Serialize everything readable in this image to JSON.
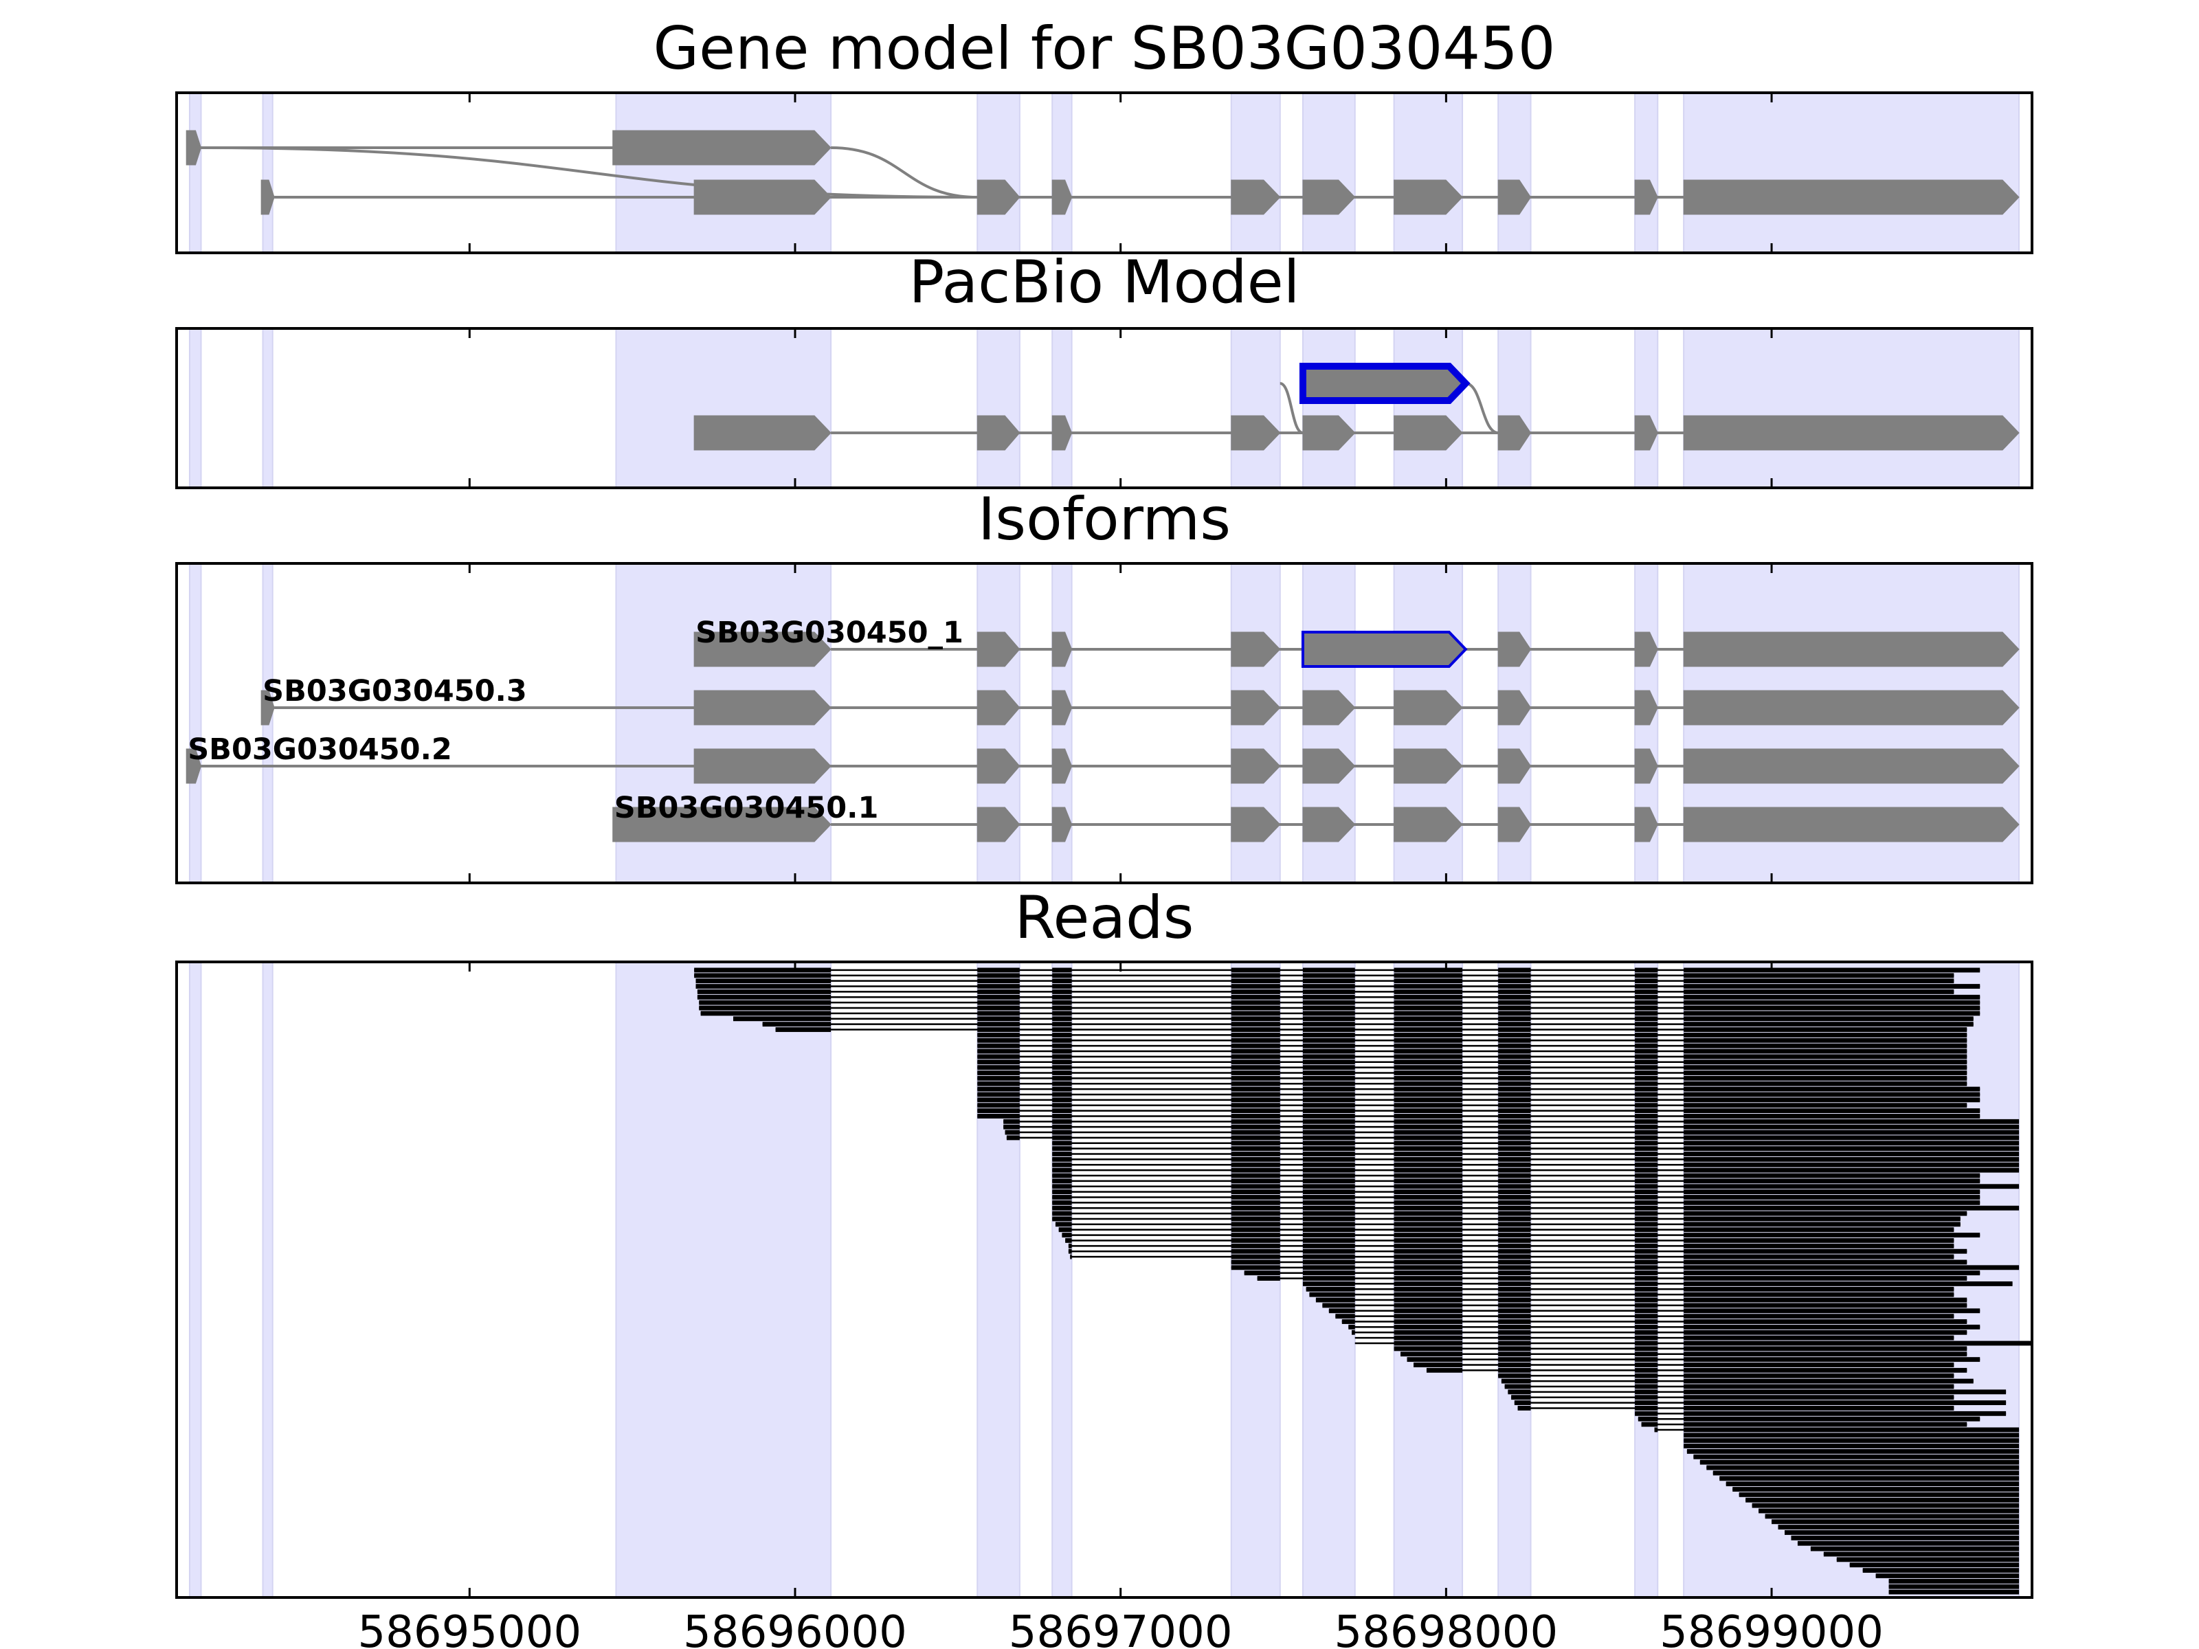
{
  "chart_data": {
    "type": "gene-structure",
    "x_range": [
      58694100,
      58699800
    ],
    "x_ticks": [
      58695000,
      58696000,
      58697000,
      58698000,
      58699000
    ],
    "highlight_color": "#e3e3fc",
    "feature_color": "#808080",
    "novel_color": "#0000dd",
    "exon_regions": [
      [
        58694140,
        58694175
      ],
      [
        58694365,
        58694395
      ],
      [
        58695450,
        58696110
      ],
      [
        58696560,
        58696690
      ],
      [
        58696790,
        58696850
      ],
      [
        58697340,
        58697490
      ],
      [
        58697560,
        58697720
      ],
      [
        58697840,
        58698050
      ],
      [
        58698160,
        58698260
      ],
      [
        58698580,
        58698650
      ],
      [
        58698730,
        58699760
      ]
    ],
    "panels": [
      {
        "title": "Gene model for SB03G030450",
        "kind": "splice-graph",
        "tracks": [
          {
            "exons": [
              [
                58694130,
                58694175
              ],
              [
                58695440,
                58696110
              ]
            ]
          },
          {
            "exons": [
              [
                58694360,
                58694400
              ],
              [
                58695690,
                58696110
              ],
              [
                58696560,
                58696690
              ],
              [
                58696790,
                58696850
              ],
              [
                58697340,
                58697490
              ],
              [
                58697560,
                58697720
              ],
              [
                58697840,
                58698050
              ],
              [
                58698160,
                58698260
              ],
              [
                58698580,
                58698650
              ],
              [
                58698730,
                58699760
              ]
            ]
          }
        ],
        "links": [
          [
            58694175,
            58696560
          ],
          [
            58696110,
            58696560
          ]
        ]
      },
      {
        "title": "PacBio Model",
        "kind": "splice-graph",
        "tracks": [
          {
            "novel": true,
            "exons": [
              [
                58697560,
                58698060
              ]
            ]
          },
          {
            "exons": [
              [
                58695690,
                58696110
              ],
              [
                58696560,
                58696690
              ],
              [
                58696790,
                58696850
              ],
              [
                58697340,
                58697490
              ],
              [
                58697560,
                58697720
              ],
              [
                58697840,
                58698050
              ],
              [
                58698160,
                58698260
              ],
              [
                58698580,
                58698650
              ],
              [
                58698730,
                58699760
              ]
            ]
          }
        ],
        "links": [
          [
            58697490,
            58697560
          ],
          [
            58698060,
            58698160
          ]
        ]
      },
      {
        "title": "Isoforms",
        "kind": "isoforms",
        "isoforms": [
          {
            "name": "SB03G030450_1",
            "novel_exon": 4,
            "exons": [
              [
                58695690,
                58696110
              ],
              [
                58696560,
                58696690
              ],
              [
                58696790,
                58696850
              ],
              [
                58697340,
                58697490
              ],
              [
                58697560,
                58698060
              ],
              [
                58698160,
                58698260
              ],
              [
                58698580,
                58698650
              ],
              [
                58698730,
                58699760
              ]
            ]
          },
          {
            "name": "SB03G030450.3",
            "exons": [
              [
                58694360,
                58694400
              ],
              [
                58695690,
                58696110
              ],
              [
                58696560,
                58696690
              ],
              [
                58696790,
                58696850
              ],
              [
                58697340,
                58697490
              ],
              [
                58697560,
                58697720
              ],
              [
                58697840,
                58698050
              ],
              [
                58698160,
                58698260
              ],
              [
                58698580,
                58698650
              ],
              [
                58698730,
                58699760
              ]
            ]
          },
          {
            "name": "SB03G030450.2",
            "exons": [
              [
                58694130,
                58694175
              ],
              [
                58695690,
                58696110
              ],
              [
                58696560,
                58696690
              ],
              [
                58696790,
                58696850
              ],
              [
                58697340,
                58697490
              ],
              [
                58697560,
                58697720
              ],
              [
                58697840,
                58698050
              ],
              [
                58698160,
                58698260
              ],
              [
                58698580,
                58698650
              ],
              [
                58698730,
                58699760
              ]
            ]
          },
          {
            "name": "SB03G030450.1",
            "exons": [
              [
                58695440,
                58696110
              ],
              [
                58696560,
                58696690
              ],
              [
                58696790,
                58696850
              ],
              [
                58697340,
                58697490
              ],
              [
                58697560,
                58697720
              ],
              [
                58697840,
                58698050
              ],
              [
                58698160,
                58698260
              ],
              [
                58698580,
                58698650
              ],
              [
                58698730,
                58699760
              ]
            ]
          }
        ]
      },
      {
        "title": "Reads",
        "kind": "reads",
        "read_groups": [
          {
            "count": 9,
            "starts": [
              58695690,
              58695690,
              58695695,
              58695695,
              58695700,
              58695700,
              58695705,
              58695705,
              58695710
            ],
            "first_exon": 0
          },
          {
            "count": 3,
            "starts": [
              58695810,
              58695900,
              58695940
            ],
            "first_exon": 0
          },
          {
            "count": 16,
            "starts": [
              58696560,
              58696560,
              58696560,
              58696560,
              58696560,
              58696560,
              58696560,
              58696560,
              58696560,
              58696560,
              58696560,
              58696560,
              58696560,
              58696560,
              58696560,
              58696560
            ],
            "first_exon": 1
          },
          {
            "count": 4,
            "starts": [
              58696640,
              58696640,
              58696645,
              58696650
            ],
            "first_exon": 1
          },
          {
            "count": 22,
            "starts": [
              58696790,
              58696790,
              58696790,
              58696790,
              58696790,
              58696790,
              58696790,
              58696790,
              58696790,
              58696790,
              58696790,
              58696790,
              58696790,
              58696790,
              58696790,
              58696800,
              58696810,
              58696820,
              58696830,
              58696840,
              58696840,
              58696845
            ],
            "first_exon": 2
          },
          {
            "count": 4,
            "starts": [
              58697340,
              58697340,
              58697380,
              58697420
            ],
            "first_exon": 3
          },
          {
            "count": 12,
            "starts": [
              58697560,
              58697570,
              58697580,
              58697600,
              58697620,
              58697640,
              58697660,
              58697680,
              58697700,
              58697710,
              58697720,
              58697720
            ],
            "first_exon": 4
          },
          {
            "count": 5,
            "starts": [
              58697840,
              58697860,
              58697880,
              58697900,
              58697940
            ],
            "first_exon": 5
          },
          {
            "count": 7,
            "starts": [
              58698160,
              58698170,
              58698180,
              58698190,
              58698200,
              58698210,
              58698220
            ],
            "first_exon": 6
          },
          {
            "count": 4,
            "starts": [
              58698580,
              58698590,
              58698600,
              58698640
            ],
            "first_exon": 7
          },
          {
            "count": 30,
            "starts": [
              58698730,
              58698730,
              58698730,
              58698740,
              58698760,
              58698780,
              58698800,
              58698820,
              58698840,
              58698860,
              58698880,
              58698900,
              58698920,
              58698940,
              58698960,
              58698980,
              58699000,
              58699020,
              58699040,
              58699060,
              58699080,
              58699120,
              58699160,
              58699200,
              58699240,
              58699280,
              58699320,
              58699360,
              58699360,
              58699360
            ],
            "first_exon": 8
          }
        ],
        "read_ends": [
          58699640,
          58699560,
          58699560,
          58699640,
          58699560,
          58699640,
          58699640,
          58699640,
          58699640,
          58699620,
          58699620,
          58699600,
          58699600,
          58699600,
          58699600,
          58699600,
          58699600,
          58699600,
          58699600,
          58699600,
          58699600,
          58699600,
          58699640,
          58699640,
          58699640,
          58699600,
          58699640,
          58699640,
          58699760,
          58699760,
          58699760,
          58699760,
          58699760,
          58699760,
          58699760,
          58699760,
          58699760,
          58699760,
          58699640,
          58699640,
          58699760,
          58699640,
          58699640,
          58699640,
          58699760,
          58699600,
          58699580,
          58699580,
          58699560,
          58699640,
          58699560,
          58699560,
          58699600,
          58699560,
          58699600,
          58699760,
          58699640,
          58699600,
          58699740,
          58699560,
          58699560,
          58699600,
          58699600,
          58699640,
          58699560,
          58699600,
          58699640,
          58699600,
          58699560,
          58699800,
          58699600,
          58699600,
          58699640,
          58699560,
          58699600,
          58699560,
          58699620,
          58699560,
          58699720,
          58699560,
          58699720,
          58699560,
          58699720,
          58699640,
          58699600,
          58699760,
          58699760,
          58699760,
          58699760,
          58699760,
          58699760,
          58699760,
          58699760,
          58699760,
          58699760,
          58699760,
          58699760,
          58699760,
          58699760,
          58699760,
          58699760,
          58699760,
          58699760,
          58699760,
          58699760,
          58699760,
          58699760,
          58699760,
          58699760,
          58699760,
          58699760,
          58699760,
          58699760,
          58699760,
          58699760,
          58699760
        ]
      }
    ]
  }
}
